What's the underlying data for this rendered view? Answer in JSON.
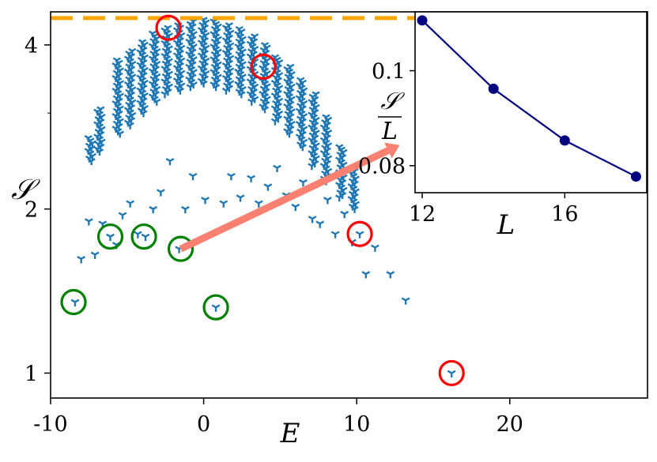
{
  "chart_data": [
    {
      "type": "scatter",
      "title": "",
      "xlabel": "E",
      "ylabel": "𝒮",
      "xlim": [
        -10,
        29
      ],
      "ylim": [
        0.9,
        4.6
      ],
      "xticks": [
        -10,
        0,
        10,
        20
      ],
      "xtick_labels": [
        "-10",
        "0",
        "10",
        "20"
      ],
      "yticks": [
        1,
        2,
        4
      ],
      "ytick_labels": [
        "1",
        "2",
        "4"
      ],
      "grid": false,
      "legend": "none",
      "reference_line": {
        "y": 4.48,
        "style": "dashed",
        "color": "#FFA500"
      },
      "marker": "tri_down",
      "series": [
        {
          "color": "#1F77B4",
          "sparse_points": [
            [
              -8.4,
              1.35
            ],
            [
              -8.0,
              1.62
            ],
            [
              -7.5,
              1.9
            ],
            [
              -7.1,
              1.65
            ],
            [
              -6.6,
              1.88
            ],
            [
              -6.1,
              1.78
            ],
            [
              -5.7,
              1.72
            ],
            [
              -5.3,
              1.95
            ],
            [
              -4.8,
              2.05
            ],
            [
              -4.3,
              1.8
            ],
            [
              -3.8,
              1.78
            ],
            [
              -3.3,
              2.0
            ],
            [
              -2.8,
              2.15
            ],
            [
              -2.2,
              2.45
            ],
            [
              -1.6,
              1.69
            ],
            [
              -1.2,
              2.0
            ],
            [
              -0.7,
              2.3
            ],
            [
              0.1,
              2.08
            ],
            [
              0.8,
              1.32
            ],
            [
              1.3,
              2.05
            ],
            [
              1.8,
              2.3
            ],
            [
              2.4,
              2.1
            ],
            [
              3.1,
              2.28
            ],
            [
              3.6,
              2.05
            ],
            [
              4.2,
              2.2
            ],
            [
              4.8,
              2.38
            ],
            [
              5.4,
              2.12
            ],
            [
              6.0,
              2.02
            ],
            [
              6.5,
              2.24
            ],
            [
              7.1,
              1.92
            ],
            [
              7.6,
              1.88
            ],
            [
              8.1,
              2.08
            ],
            [
              8.6,
              1.8
            ],
            [
              9.2,
              1.96
            ],
            [
              9.7,
              1.74
            ],
            [
              10.2,
              1.8
            ],
            [
              10.6,
              1.52
            ],
            [
              11.2,
              1.7
            ],
            [
              12.2,
              1.52
            ],
            [
              13.2,
              1.36
            ],
            [
              16.2,
              1.0
            ]
          ],
          "columns": [
            {
              "x": -7.4,
              "y_min": 2.45,
              "y_max": 2.7
            },
            {
              "x": -6.8,
              "y_min": 2.55,
              "y_max": 3.05
            },
            {
              "x": -5.6,
              "y_min": 2.75,
              "y_max": 3.75
            },
            {
              "x": -4.8,
              "y_min": 2.85,
              "y_max": 3.9
            },
            {
              "x": -4.0,
              "y_min": 3.0,
              "y_max": 4.05
            },
            {
              "x": -3.2,
              "y_min": 3.15,
              "y_max": 4.2
            },
            {
              "x": -2.4,
              "y_min": 3.25,
              "y_max": 4.3
            },
            {
              "x": -1.6,
              "y_min": 3.3,
              "y_max": 4.35
            },
            {
              "x": -0.8,
              "y_min": 3.35,
              "y_max": 4.42
            },
            {
              "x": 0.0,
              "y_min": 3.4,
              "y_max": 4.45
            },
            {
              "x": 0.8,
              "y_min": 3.35,
              "y_max": 4.42
            },
            {
              "x": 1.6,
              "y_min": 3.3,
              "y_max": 4.35
            },
            {
              "x": 2.4,
              "y_min": 3.25,
              "y_max": 4.28
            },
            {
              "x": 3.2,
              "y_min": 3.15,
              "y_max": 4.15
            },
            {
              "x": 4.0,
              "y_min": 3.05,
              "y_max": 4.0
            },
            {
              "x": 4.8,
              "y_min": 2.9,
              "y_max": 3.8
            },
            {
              "x": 5.6,
              "y_min": 2.75,
              "y_max": 3.65
            },
            {
              "x": 6.4,
              "y_min": 2.6,
              "y_max": 3.45
            },
            {
              "x": 7.2,
              "y_min": 2.4,
              "y_max": 3.25
            },
            {
              "x": 8.0,
              "y_min": 2.25,
              "y_max": 2.95
            },
            {
              "x": 9.0,
              "y_min": 2.1,
              "y_max": 2.6
            },
            {
              "x": 9.8,
              "y_min": 2.0,
              "y_max": 2.35
            }
          ]
        }
      ],
      "highlighted_points": [
        {
          "x": -8.5,
          "y": 1.35,
          "color": "#008000"
        },
        {
          "x": -6.1,
          "y": 1.78,
          "color": "#008000"
        },
        {
          "x": -3.9,
          "y": 1.78,
          "color": "#008000"
        },
        {
          "x": -1.5,
          "y": 1.69,
          "color": "#008000"
        },
        {
          "x": 0.8,
          "y": 1.32,
          "color": "#008000"
        },
        {
          "x": -2.3,
          "y": 4.3,
          "color": "#FF0000"
        },
        {
          "x": 3.9,
          "y": 3.65,
          "color": "#FF0000"
        },
        {
          "x": 10.2,
          "y": 1.8,
          "color": "#FF0000"
        },
        {
          "x": 16.2,
          "y": 1.0,
          "color": "#FF0000"
        }
      ],
      "arrow": {
        "from": [
          -1.5,
          1.69
        ],
        "to": [
          12.8,
          2.62
        ],
        "color": "#FA8072"
      }
    },
    {
      "type": "line",
      "title": "",
      "xlabel": "L",
      "ylabel": "𝒮/L",
      "ylabel_numerator": "𝒮",
      "ylabel_denominator": "L",
      "x": [
        12,
        14,
        16,
        18
      ],
      "y": [
        0.1106,
        0.0962,
        0.0853,
        0.0777
      ],
      "xlim": [
        11.8,
        18.3
      ],
      "ylim": [
        0.0743,
        0.1124
      ],
      "xticks": [
        12,
        16
      ],
      "xtick_labels": [
        "12",
        "16"
      ],
      "yticks": [
        0.08,
        0.1
      ],
      "ytick_labels": [
        "0.08",
        "0.1"
      ],
      "grid": false,
      "color": "#000080",
      "marker": "o"
    }
  ]
}
